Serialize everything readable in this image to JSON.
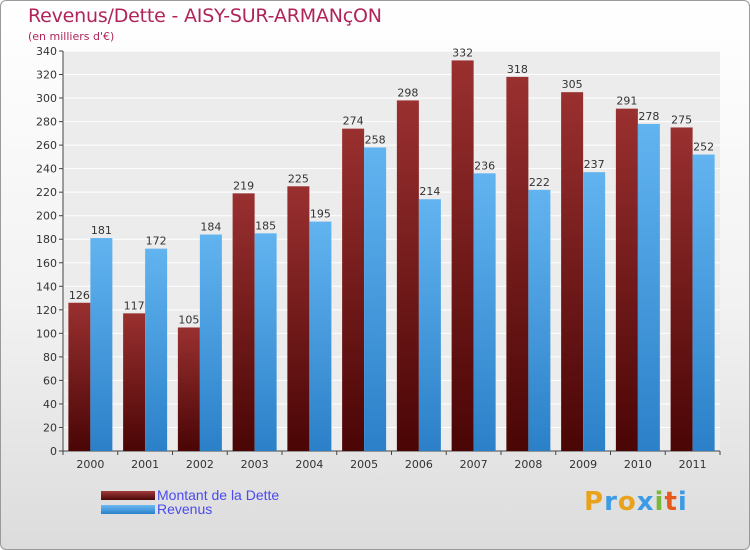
{
  "title": "Revenus/Dette - AISY-SUR-ARMANçON",
  "subtitle": "(en milliers d'€)",
  "colors": {
    "dette": "#7a1a1a",
    "revenus": "#3c9be6",
    "title": "#b0245a",
    "legend_text": "#4a4af0"
  },
  "chart_data": {
    "type": "bar",
    "categories": [
      "2000",
      "2001",
      "2002",
      "2003",
      "2004",
      "2005",
      "2006",
      "2007",
      "2008",
      "2009",
      "2010",
      "2011"
    ],
    "series": [
      {
        "name": "Montant de la Dette",
        "values": [
          126,
          117,
          105,
          219,
          225,
          274,
          298,
          332,
          318,
          305,
          291,
          275
        ]
      },
      {
        "name": "Revenus",
        "values": [
          181,
          172,
          184,
          185,
          195,
          258,
          214,
          236,
          222,
          237,
          278,
          252
        ]
      }
    ],
    "ylim": [
      0,
      340
    ],
    "yticks": [
      0,
      20,
      40,
      60,
      80,
      100,
      120,
      140,
      160,
      180,
      200,
      220,
      240,
      260,
      280,
      300,
      320,
      340
    ],
    "grid": true,
    "legend": "bottom-left"
  },
  "legend": {
    "dette_label": "Montant de la Dette",
    "revenus_label": "Revenus"
  },
  "logo": {
    "letters": [
      "P",
      "r",
      "o",
      "x",
      "i",
      "t",
      "i"
    ],
    "colors": [
      "#e8a21c",
      "#3c9be6",
      "#e8a21c",
      "#3c9be6",
      "#7ab83a",
      "#e85a1c",
      "#3c9be6"
    ]
  }
}
